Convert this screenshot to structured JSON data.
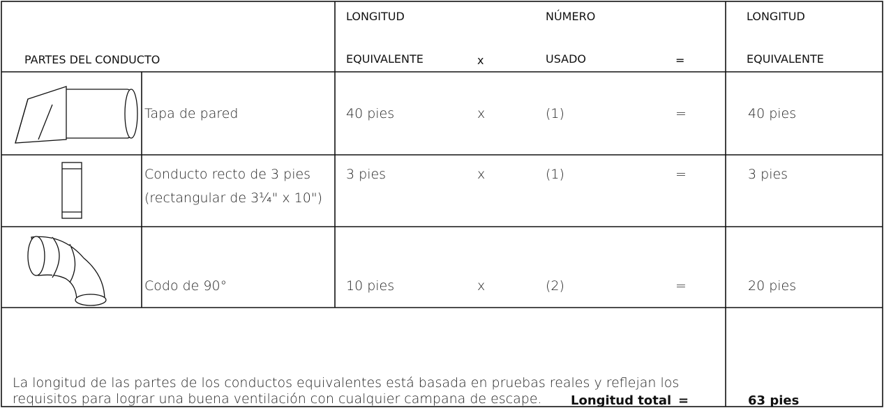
{
  "header": {
    "parts": "PARTES DEL CONDUCTO",
    "equivalent_length": [
      "LONGITUD",
      "EQUIVALENTE"
    ],
    "times": "x",
    "number_used": [
      "NÚMERO",
      "USADO"
    ],
    "equals": "=",
    "total_equivalent": [
      "LONGITUD",
      "EQUIVALENTE"
    ]
  },
  "rows": [
    {
      "part": [
        "Tapa de pared"
      ],
      "length": "40 pies",
      "times": "x",
      "count": "(1)",
      "equals": "=",
      "total": "40 pies"
    },
    {
      "part": [
        "Conducto recto de 3 pies",
        "(rectangular de 3¼\" x 10\")"
      ],
      "length": "3 pies",
      "times": "x",
      "count": "(1)",
      "equals": "=",
      "total": "3 pies"
    },
    {
      "part": [
        "Codo de 90°"
      ],
      "length": "10 pies",
      "times": "x",
      "count": "(2)",
      "equals": "=",
      "total": "20 pies"
    }
  ],
  "footer": {
    "note": [
      "La longitud de las partes de los conductos equivalentes está basada en pruebas reales y reflejan los",
      "requisitos para lograr una buena ventilación con cualquier campana de escape."
    ],
    "total_label": "Longitud total",
    "equals": "=",
    "total_value": "63 pies"
  }
}
